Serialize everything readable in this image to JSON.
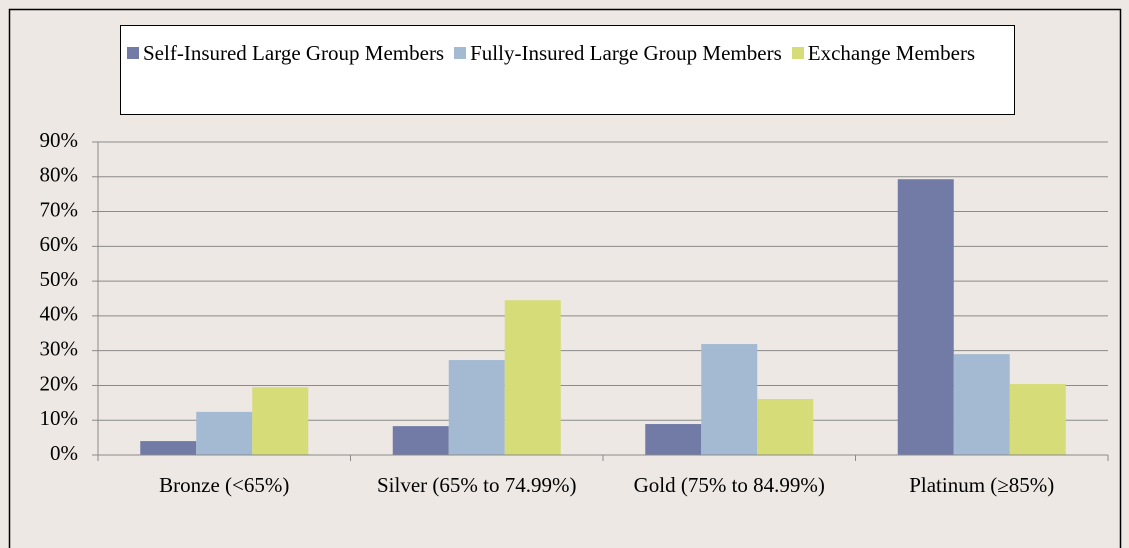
{
  "chart_data": {
    "type": "bar",
    "categories": [
      "Bronze (<65%)",
      "Silver (65% to 74.99%)",
      "Gold (75% to 84.99%)",
      "Platinum (≥85%)"
    ],
    "series": [
      {
        "name": "Self-Insured Large Group Members",
        "color": "#717ba6",
        "values": [
          4.0,
          8.3,
          8.9,
          79.3
        ]
      },
      {
        "name": "Fully-Insured Large Group Members",
        "color": "#a3bad2",
        "values": [
          12.4,
          27.3,
          31.9,
          29.0
        ]
      },
      {
        "name": "Exchange Members",
        "color": "#d6dc78",
        "values": [
          19.5,
          44.5,
          16.1,
          20.4
        ]
      }
    ],
    "ylim": [
      0,
      90
    ],
    "yticks": [
      {
        "value": 0,
        "label": "0%"
      },
      {
        "value": 10,
        "label": "10%"
      },
      {
        "value": 20,
        "label": "20%"
      },
      {
        "value": 30,
        "label": "30%"
      },
      {
        "value": 40,
        "label": "40%"
      },
      {
        "value": 50,
        "label": "50%"
      },
      {
        "value": 60,
        "label": "60%"
      },
      {
        "value": 70,
        "label": "70%"
      },
      {
        "value": 80,
        "label": "80%"
      },
      {
        "value": 90,
        "label": "90%"
      }
    ],
    "grid": true
  }
}
